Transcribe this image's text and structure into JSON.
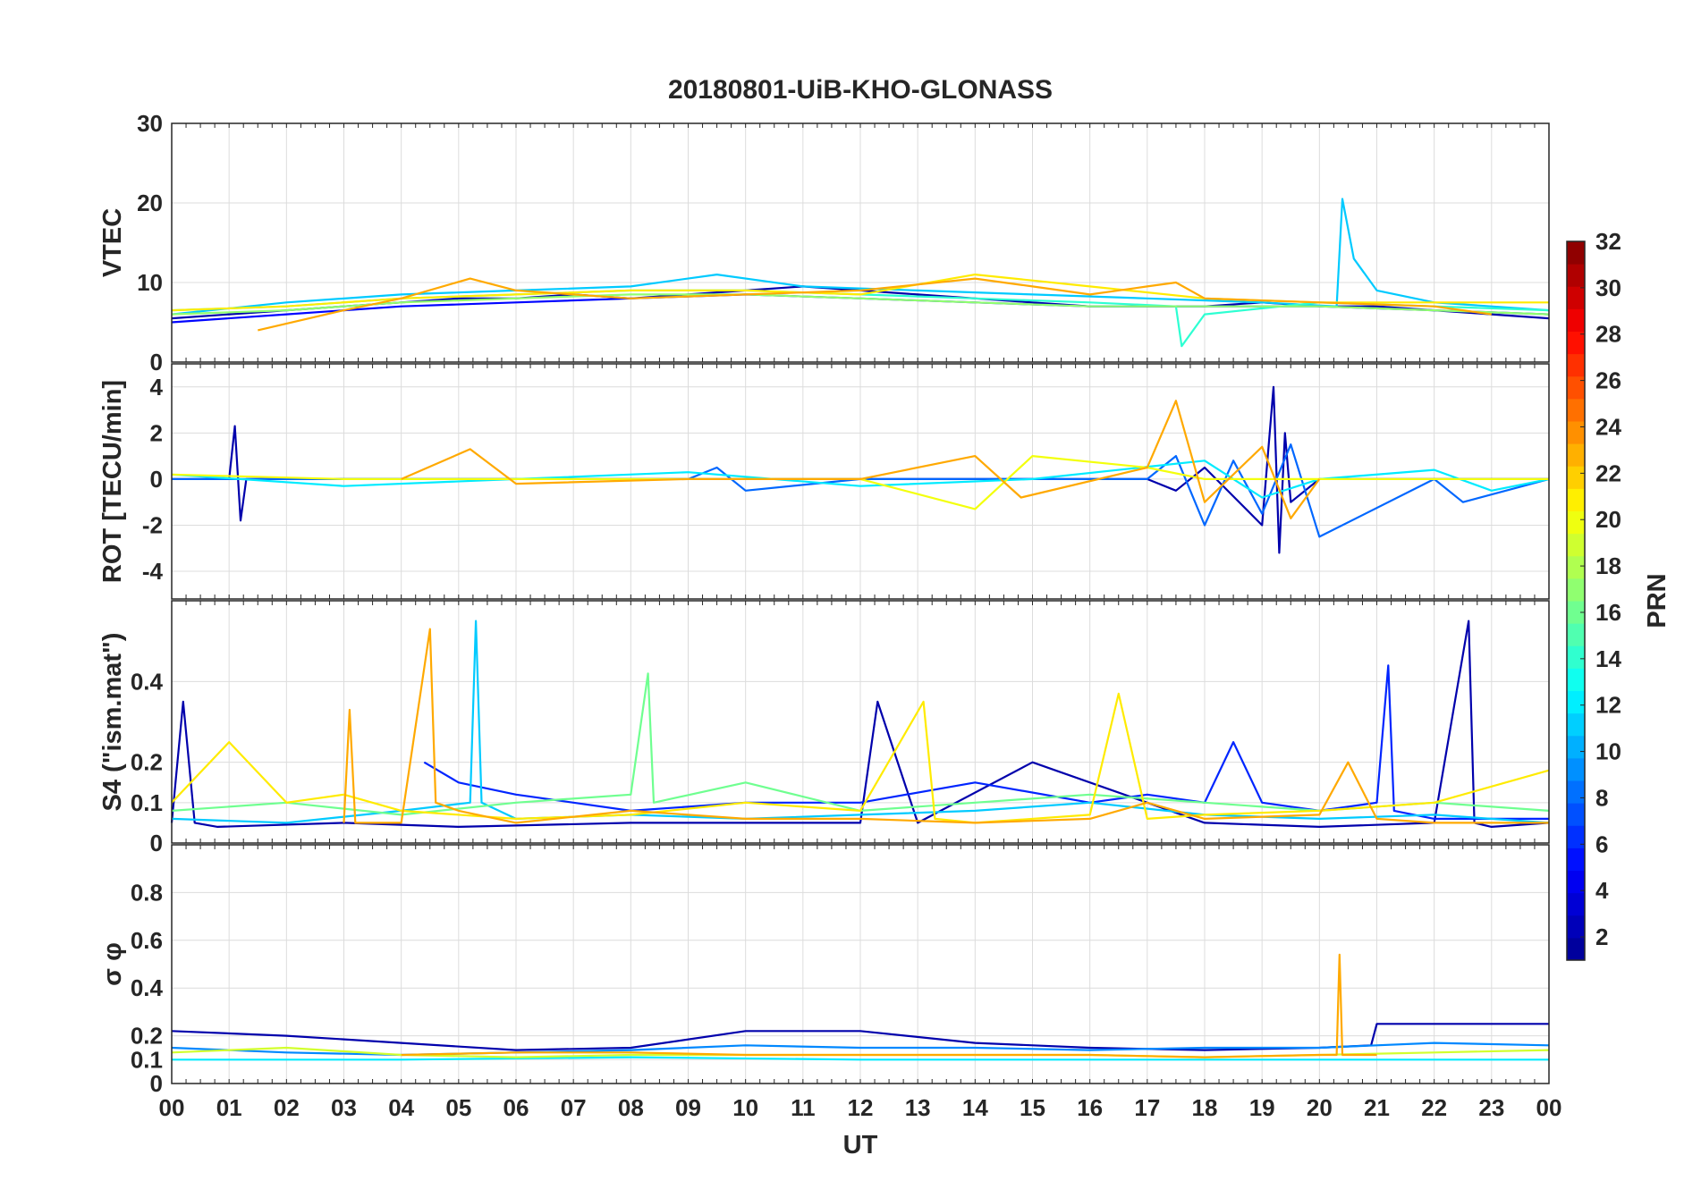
{
  "chart_data": {
    "type": "line",
    "title": "20180801-UiB-KHO-GLONASS",
    "xlabel": "UT",
    "x_tick_labels": [
      "00",
      "01",
      "02",
      "03",
      "04",
      "05",
      "06",
      "07",
      "08",
      "09",
      "10",
      "11",
      "12",
      "13",
      "14",
      "15",
      "16",
      "17",
      "18",
      "19",
      "20",
      "21",
      "22",
      "23",
      "00"
    ],
    "xlim_hours": [
      0,
      24
    ],
    "grid": true,
    "panels": [
      {
        "ylabel": "VTEC",
        "ylim": [
          0,
          30
        ],
        "yticks": [
          0,
          10,
          20,
          30
        ],
        "series": [
          {
            "prn": 2,
            "x": [
              0,
              1,
              2,
              3,
              4,
              5,
              6,
              7,
              8,
              9,
              10,
              11,
              12,
              13,
              14,
              15,
              16,
              17,
              18,
              19,
              20,
              21,
              22,
              23,
              24
            ],
            "y": [
              5.5,
              6,
              6.5,
              7,
              7.5,
              8,
              8,
              8.5,
              8,
              8.5,
              9,
              9.5,
              9,
              8.5,
              8,
              7.5,
              7,
              7,
              7,
              7.5,
              7,
              7,
              6.5,
              6,
              5.5
            ]
          },
          {
            "prn": 5,
            "x": [
              0,
              2,
              4,
              6,
              8,
              10,
              12,
              14,
              16,
              18,
              20,
              22,
              24
            ],
            "y": [
              5,
              6,
              7,
              7.5,
              8,
              8.5,
              8,
              7.5,
              7,
              7,
              7,
              6.5,
              6
            ]
          },
          {
            "prn": 11,
            "x": [
              0,
              2,
              4,
              6,
              8,
              9.5,
              11,
              13,
              15,
              17,
              19,
              20.3,
              20.4,
              20.6,
              21,
              22,
              24
            ],
            "y": [
              6,
              7.5,
              8.5,
              9,
              9.5,
              11,
              9.5,
              9,
              8.5,
              8,
              7.5,
              7,
              20.5,
              13,
              9,
              7.5,
              6.5
            ]
          },
          {
            "prn": 14,
            "x": [
              0,
              2,
              4,
              6,
              8,
              10,
              12,
              14,
              16,
              17.5,
              17.6,
              18,
              20,
              22,
              24
            ],
            "y": [
              6.5,
              7,
              8,
              8.5,
              9,
              9,
              8.5,
              8,
              7.5,
              7,
              2,
              6,
              7.5,
              7,
              6.5
            ]
          },
          {
            "prn": 17,
            "x": [
              0,
              2,
              4,
              6,
              8,
              10,
              12,
              14,
              16,
              18,
              20,
              22,
              24
            ],
            "y": [
              6,
              6.5,
              7.5,
              8,
              8.5,
              8.5,
              8,
              7.5,
              7,
              7,
              7,
              6.5,
              6
            ]
          },
          {
            "prn": 21,
            "x": [
              0,
              2,
              4,
              6,
              8,
              10,
              12,
              14,
              16,
              18,
              20,
              22,
              24
            ],
            "y": [
              6.5,
              7,
              8,
              8.5,
              9,
              9,
              8.5,
              11,
              9.5,
              8,
              7.5,
              7.5,
              7.5
            ]
          },
          {
            "prn": 23,
            "x": [
              1.5,
              3,
              4,
              5.2,
              6,
              8,
              10,
              12,
              14,
              15,
              16,
              17,
              17.5,
              18,
              20,
              22,
              23
            ],
            "y": [
              4,
              6.5,
              8,
              10.5,
              9,
              8,
              8.5,
              9,
              10.5,
              9.5,
              8.5,
              9.5,
              10,
              8,
              7.5,
              7,
              6
            ]
          }
        ]
      },
      {
        "ylabel": "ROT [TECU/min]",
        "ylim": [
          -5.2,
          5
        ],
        "yticks": [
          -4,
          -2,
          0,
          2,
          4
        ],
        "series": [
          {
            "prn": 2,
            "x": [
              0,
              1,
              1.1,
              1.2,
              1.3,
              2,
              6,
              10,
              14,
              17,
              17.5,
              18,
              19,
              19.2,
              19.3,
              19.4,
              19.5,
              20,
              22,
              24
            ],
            "y": [
              0,
              0,
              2.3,
              -1.8,
              0,
              0,
              0,
              0,
              0,
              0,
              -0.5,
              0.5,
              -2,
              4,
              -3.2,
              2,
              -1,
              0,
              0,
              0
            ]
          },
          {
            "prn": 8,
            "x": [
              0,
              3,
              6,
              9,
              9.5,
              10,
              12,
              15,
              17,
              17.5,
              18,
              18.5,
              19,
              19.5,
              20,
              22,
              22.5,
              24
            ],
            "y": [
              0,
              0,
              0,
              0,
              0.5,
              -0.5,
              0,
              0,
              0,
              1,
              -2,
              0.8,
              -1.5,
              1.5,
              -2.5,
              0,
              -1,
              0
            ]
          },
          {
            "prn": 12,
            "x": [
              0,
              3,
              6,
              9,
              12,
              15,
              18,
              19,
              20,
              22,
              23,
              24
            ],
            "y": [
              0.2,
              -0.3,
              0,
              0.3,
              -0.3,
              0,
              0.8,
              -0.8,
              0,
              0.4,
              -0.5,
              0
            ]
          },
          {
            "prn": 20,
            "x": [
              0,
              3,
              6,
              9,
              12,
              14,
              15,
              17,
              18,
              20,
              22,
              24
            ],
            "y": [
              0.2,
              0,
              0,
              0,
              0,
              -1.3,
              1,
              0.5,
              0,
              0,
              0,
              0
            ]
          },
          {
            "prn": 23,
            "x": [
              4,
              5.2,
              6,
              9,
              12,
              14,
              14.8,
              17,
              17.5,
              18,
              19,
              19.5,
              20
            ],
            "y": [
              0,
              1.3,
              -0.2,
              0,
              0,
              1,
              -0.8,
              0.5,
              3.4,
              -1,
              1.4,
              -1.7,
              0
            ]
          }
        ]
      },
      {
        "ylabel": "S4 (\"ism.mat\")",
        "ylim": [
          0,
          0.6
        ],
        "yticks": [
          0,
          0.1,
          0.2,
          0.4
        ],
        "series": [
          {
            "prn": 2,
            "x": [
              0,
              0.2,
              0.4,
              0.8,
              3,
              5,
              8,
              10,
              12,
              12.3,
              13,
              15,
              18,
              20,
              22,
              22.6,
              22.7,
              23,
              24
            ],
            "y": [
              0.05,
              0.35,
              0.05,
              0.04,
              0.05,
              0.04,
              0.05,
              0.05,
              0.05,
              0.35,
              0.05,
              0.2,
              0.05,
              0.04,
              0.05,
              0.55,
              0.05,
              0.04,
              0.05
            ]
          },
          {
            "prn": 6,
            "x": [
              4.4,
              5,
              6,
              7,
              8,
              10,
              12,
              14,
              16,
              17,
              18,
              18.5,
              19,
              20,
              21,
              21.2,
              21.3,
              22,
              24
            ],
            "y": [
              0.2,
              0.15,
              0.12,
              0.1,
              0.08,
              0.1,
              0.1,
              0.15,
              0.1,
              0.12,
              0.1,
              0.25,
              0.1,
              0.08,
              0.1,
              0.44,
              0.08,
              0.06,
              0.06
            ]
          },
          {
            "prn": 11,
            "x": [
              0,
              2,
              4,
              5.2,
              5.3,
              5.4,
              6,
              8,
              10,
              12,
              14,
              16,
              18,
              20,
              22,
              24
            ],
            "y": [
              0.06,
              0.05,
              0.08,
              0.1,
              0.55,
              0.1,
              0.06,
              0.07,
              0.06,
              0.07,
              0.08,
              0.1,
              0.07,
              0.06,
              0.07,
              0.05
            ]
          },
          {
            "prn": 16,
            "x": [
              0,
              2,
              4,
              6,
              8,
              8.3,
              8.4,
              10,
              12,
              14,
              16,
              18,
              20,
              22,
              24
            ],
            "y": [
              0.08,
              0.1,
              0.07,
              0.1,
              0.12,
              0.42,
              0.1,
              0.15,
              0.08,
              0.1,
              0.12,
              0.1,
              0.08,
              0.1,
              0.08
            ]
          },
          {
            "prn": 21,
            "x": [
              0,
              1,
              2,
              3,
              4,
              6,
              8,
              10,
              12,
              13.1,
              13.3,
              14,
              16,
              16.5,
              17,
              18,
              20,
              22,
              24
            ],
            "y": [
              0.1,
              0.25,
              0.1,
              0.12,
              0.08,
              0.06,
              0.07,
              0.1,
              0.08,
              0.35,
              0.06,
              0.05,
              0.07,
              0.37,
              0.06,
              0.07,
              0.08,
              0.1,
              0.18
            ]
          },
          {
            "prn": 23,
            "x": [
              3,
              3.1,
              3.2,
              4,
              4.5,
              4.6,
              5,
              6,
              8,
              10,
              12,
              14,
              16,
              17,
              18,
              20,
              20.5,
              21,
              22,
              24
            ],
            "y": [
              0.05,
              0.33,
              0.05,
              0.05,
              0.53,
              0.1,
              0.08,
              0.05,
              0.08,
              0.06,
              0.06,
              0.05,
              0.06,
              0.1,
              0.06,
              0.07,
              0.2,
              0.06,
              0.05,
              0.05
            ]
          }
        ]
      },
      {
        "ylabel": "σ φ",
        "ylim": [
          0,
          1
        ],
        "yticks": [
          0,
          0.1,
          0.2,
          0.4,
          0.6,
          0.8
        ],
        "series": [
          {
            "prn": 2,
            "x": [
              0,
              2,
              4,
              6,
              8,
              10,
              12,
              14,
              16,
              18,
              20,
              20.9,
              21,
              22,
              24
            ],
            "y": [
              0.22,
              0.2,
              0.17,
              0.14,
              0.15,
              0.22,
              0.22,
              0.17,
              0.15,
              0.14,
              0.15,
              0.16,
              0.25,
              0.25,
              0.25
            ]
          },
          {
            "prn": 9,
            "x": [
              0,
              2,
              4,
              6,
              8,
              10,
              12,
              14,
              16,
              18,
              20,
              22,
              24
            ],
            "y": [
              0.15,
              0.13,
              0.12,
              0.13,
              0.14,
              0.16,
              0.15,
              0.15,
              0.14,
              0.15,
              0.15,
              0.17,
              0.16
            ]
          },
          {
            "prn": 12,
            "x": [
              0,
              4,
              8,
              12,
              16,
              20,
              24
            ],
            "y": [
              0.1,
              0.1,
              0.11,
              0.1,
              0.1,
              0.1,
              0.1
            ]
          },
          {
            "prn": 19,
            "x": [
              0,
              2,
              4,
              6,
              8,
              10,
              12,
              14,
              16,
              18,
              20,
              22,
              24
            ],
            "y": [
              0.13,
              0.15,
              0.12,
              0.11,
              0.12,
              0.12,
              0.12,
              0.12,
              0.12,
              0.11,
              0.12,
              0.13,
              0.14
            ]
          },
          {
            "prn": 23,
            "x": [
              4,
              6,
              8,
              10,
              12,
              14,
              16,
              18,
              20,
              20.3,
              20.35,
              20.4,
              21
            ],
            "y": [
              0.12,
              0.13,
              0.13,
              0.12,
              0.12,
              0.12,
              0.12,
              0.11,
              0.12,
              0.12,
              0.54,
              0.12,
              0.12
            ]
          }
        ]
      }
    ],
    "colorbar": {
      "label": "PRN",
      "range": [
        1,
        32
      ],
      "ticks": [
        2,
        4,
        6,
        8,
        10,
        12,
        14,
        16,
        18,
        20,
        22,
        24,
        26,
        28,
        30,
        32
      ],
      "colormap": "jet",
      "colors": [
        "#00008f",
        "#0000ff",
        "#0080ff",
        "#00ffff",
        "#80ff80",
        "#ffff00",
        "#ff8000",
        "#ff0000",
        "#800000"
      ]
    }
  }
}
